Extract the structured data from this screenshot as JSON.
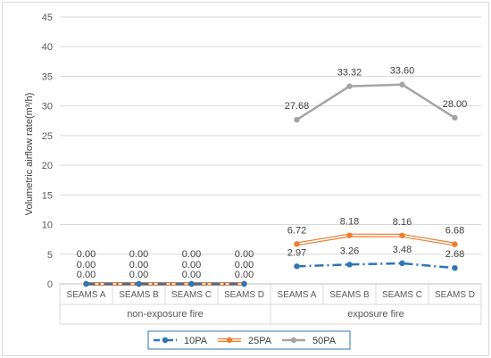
{
  "chart_data": {
    "type": "line",
    "title": "",
    "ylabel": "Volumetric airflow rate(m³/h)",
    "xlabel": "",
    "ylim": [
      0,
      45
    ],
    "yticks": [
      0,
      5,
      10,
      15,
      20,
      25,
      30,
      35,
      40,
      45
    ],
    "grid": true,
    "legend_position": "bottom",
    "groups": [
      {
        "label": "non-exposure fire",
        "categories": [
          "SEAMS A",
          "SEAMS B",
          "SEAMS C",
          "SEAMS D"
        ]
      },
      {
        "label": "exposure fire",
        "categories": [
          "SEAMS A",
          "SEAMS B",
          "SEAMS C",
          "SEAMS D"
        ]
      }
    ],
    "categories": [
      "SEAMS A",
      "SEAMS B",
      "SEAMS C",
      "SEAMS D",
      "SEAMS A",
      "SEAMS B",
      "SEAMS C",
      "SEAMS D"
    ],
    "series": [
      {
        "name": "10PA",
        "color": "#2e75b6",
        "dash": true,
        "values": [
          0,
          0,
          0,
          0,
          2.97,
          3.26,
          3.48,
          2.68
        ],
        "labels": [
          "0.00",
          "0.00",
          "0.00",
          "0.00",
          "2.97",
          "3.26",
          "3.48",
          "2.68"
        ]
      },
      {
        "name": "25PA",
        "color": "#ed7d31",
        "dash": false,
        "double": true,
        "values": [
          0,
          0,
          0,
          0,
          6.72,
          8.18,
          8.16,
          6.68
        ],
        "labels": [
          "0.00",
          "0.00",
          "0.00",
          "0.00",
          "6.72",
          "8.18",
          "8.16",
          "6.68"
        ]
      },
      {
        "name": "50PA",
        "color": "#a5a5a5",
        "dash": false,
        "values": [
          0,
          0,
          0,
          0,
          27.68,
          33.32,
          33.6,
          28.0
        ],
        "labels": [
          "0.00",
          "0.00",
          "0.00",
          "0.00",
          "27.68",
          "33.32",
          "33.60",
          "28.00"
        ]
      }
    ]
  }
}
